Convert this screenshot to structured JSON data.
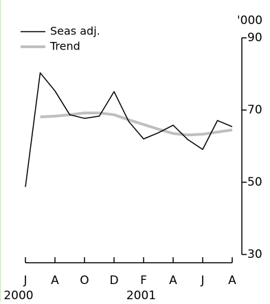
{
  "chart_data": {
    "type": "line",
    "y_unit_label": "'000",
    "categories": [
      "J",
      null,
      "A",
      null,
      "O",
      null,
      "D",
      null,
      "F",
      null,
      "A",
      null,
      "J",
      null,
      "A"
    ],
    "year_labels": [
      "2000",
      null,
      null,
      null,
      null,
      null,
      null,
      "2001",
      null,
      null,
      null,
      null,
      null,
      null,
      null
    ],
    "series": [
      {
        "name": "Seas adj.",
        "color": "#000000",
        "values": [
          48.7,
          80.3,
          75.3,
          68.7,
          67.7,
          68.3,
          75.1,
          66.8,
          62,
          63.7,
          65.8,
          61.8,
          59.1,
          67.1,
          65.4
        ]
      },
      {
        "name": "Trend",
        "color": "#bfbfbf",
        "values": [
          null,
          68.1,
          68.3,
          68.7,
          69.2,
          69.2,
          68.7,
          67.3,
          66,
          64.7,
          63.5,
          63.1,
          63.3,
          63.9,
          64.5
        ]
      }
    ],
    "ylim": [
      30,
      90
    ],
    "yticks": [
      30,
      50,
      70,
      90
    ],
    "legend": "top-left"
  }
}
